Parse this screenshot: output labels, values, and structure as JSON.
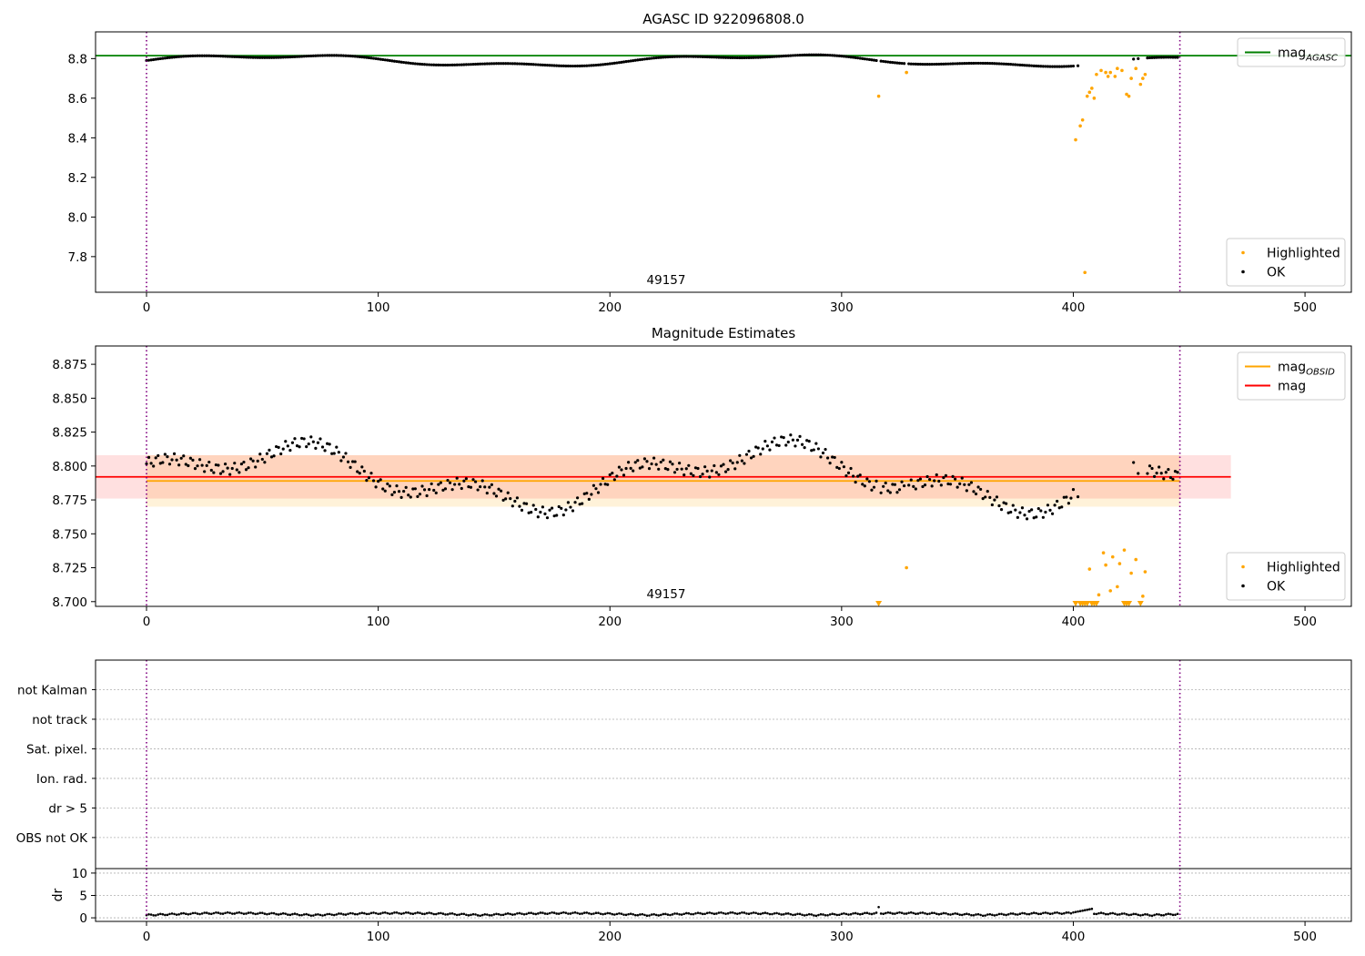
{
  "chart_data": [
    {
      "type": "scatter",
      "title": "AGASC ID 922096808.0",
      "xlim": [
        -22,
        520
      ],
      "ylim": [
        7.62,
        8.935
      ],
      "xticks": [
        0,
        100,
        200,
        300,
        400,
        500
      ],
      "yticks": [
        7.8,
        8.0,
        8.2,
        8.4,
        8.6,
        8.8
      ],
      "ytick_labels": [
        "7.8",
        "8.0",
        "8.2",
        "8.4",
        "8.6",
        "8.8"
      ],
      "annotation": {
        "text": "49157",
        "x": 222,
        "y": 7.7
      },
      "vlines": {
        "x": [
          0,
          446
        ],
        "color": "#800080",
        "style": "dotted"
      },
      "hlines": [
        {
          "y": 8.815,
          "x_range": [
            -22,
            520
          ],
          "color": "#008000",
          "label": "mag",
          "label_sub": "AGASC"
        }
      ],
      "series": [
        {
          "name": "Highlighted",
          "color": "#ffa500",
          "x": [
            316,
            328,
            401,
            403,
            404,
            405,
            406,
            407,
            408,
            409,
            410,
            412,
            414,
            415,
            416,
            418,
            419,
            421,
            423,
            424,
            425,
            427,
            429,
            430,
            431
          ],
          "y": [
            8.61,
            8.73,
            8.39,
            8.46,
            8.49,
            7.72,
            8.61,
            8.63,
            8.65,
            8.6,
            8.72,
            8.74,
            8.73,
            8.71,
            8.73,
            8.71,
            8.75,
            8.74,
            8.62,
            8.61,
            8.7,
            8.75,
            8.67,
            8.7,
            8.72
          ]
        },
        {
          "name": "OK",
          "color": "#000000",
          "gen": "ok_main",
          "y_offset": 0
        }
      ],
      "legends": [
        {
          "pos": "upper-right",
          "entries": [
            {
              "label": "mag",
              "sub": "AGASC",
              "kind": "line",
              "color": "#008000"
            }
          ]
        },
        {
          "pos": "lower-right",
          "entries": [
            {
              "label": "Highlighted",
              "kind": "dot",
              "color": "#ffa500"
            },
            {
              "label": "OK",
              "kind": "dot",
              "color": "#000000"
            }
          ]
        }
      ]
    },
    {
      "type": "scatter",
      "title": "Magnitude Estimates",
      "xlim": [
        -22,
        520
      ],
      "ylim": [
        8.6965,
        8.8885
      ],
      "xticks": [
        0,
        100,
        200,
        300,
        400,
        500
      ],
      "yticks": [
        8.7,
        8.725,
        8.75,
        8.775,
        8.8,
        8.825,
        8.85,
        8.875
      ],
      "ytick_labels": [
        "8.700",
        "8.725",
        "8.750",
        "8.775",
        "8.800",
        "8.825",
        "8.850",
        "8.875"
      ],
      "annotation": {
        "text": "49157",
        "x": 222,
        "y": 8.701
      },
      "vlines": {
        "x": [
          0,
          446
        ],
        "color": "#800080",
        "style": "dotted"
      },
      "bands": [
        {
          "x_range": [
            0,
            446
          ],
          "y_range": [
            8.77,
            8.808
          ],
          "color": "#ffa500",
          "opacity": 0.15
        },
        {
          "x_range": [
            -22,
            468
          ],
          "y_range": [
            8.776,
            8.808
          ],
          "color": "#ff0000",
          "opacity": 0.12
        }
      ],
      "hlines": [
        {
          "y": 8.789,
          "x_range": [
            0,
            446
          ],
          "color": "#ffa500",
          "label": "mag",
          "label_sub": "OBSID"
        },
        {
          "y": 8.792,
          "x_range": [
            -22,
            468
          ],
          "color": "#ff0000",
          "label": "mag"
        }
      ],
      "series": [
        {
          "name": "Highlighted",
          "color": "#ffa500",
          "x": [
            328,
            407,
            411,
            413,
            414,
            416,
            417,
            419,
            420,
            422,
            425,
            427,
            430,
            431
          ],
          "y": [
            8.725,
            8.724,
            8.705,
            8.736,
            8.727,
            8.708,
            8.733,
            8.711,
            8.728,
            8.738,
            8.721,
            8.731,
            8.704,
            8.722
          ]
        },
        {
          "name": "Highlighted (clipped)",
          "color": "#ffa500",
          "marker": "triangle-down",
          "x": [
            316,
            401,
            403,
            404,
            405,
            406,
            408,
            409,
            410,
            422,
            423,
            424,
            429
          ],
          "y": [
            8.6985,
            8.6985,
            8.6985,
            8.6985,
            8.6985,
            8.6985,
            8.6985,
            8.6985,
            8.6985,
            8.6985,
            8.6985,
            8.6985,
            8.6985
          ]
        },
        {
          "name": "OK",
          "color": "#000000",
          "gen": "ok_main",
          "y_offset": 0
        }
      ],
      "legends": [
        {
          "pos": "upper-right",
          "entries": [
            {
              "label": "mag",
              "sub": "OBSID",
              "kind": "line",
              "color": "#ffa500"
            },
            {
              "label": "mag",
              "kind": "line",
              "color": "#ff0000"
            }
          ]
        },
        {
          "pos": "lower-right",
          "entries": [
            {
              "label": "Highlighted",
              "kind": "dot",
              "color": "#ffa500"
            },
            {
              "label": "OK",
              "kind": "dot",
              "color": "#000000"
            }
          ]
        }
      ]
    },
    {
      "type": "table",
      "xlim": [
        -22,
        520
      ],
      "ytick_labels": [
        "not Kalman",
        "not track",
        "Sat. pixel.",
        "Ion. rad.",
        "dr > 5",
        "OBS not OK"
      ],
      "vlines": {
        "x": [
          0,
          446
        ],
        "color": "#800080",
        "style": "dotted"
      },
      "grid": true
    },
    {
      "type": "scatter",
      "xlim": [
        -22,
        520
      ],
      "ylim": [
        -0.8,
        11
      ],
      "ylabel": "dr",
      "xticks": [
        0,
        100,
        200,
        300,
        400,
        500
      ],
      "yticks": [
        0,
        5,
        10
      ],
      "ytick_labels": [
        "0",
        "5",
        "10"
      ],
      "vlines": {
        "x": [
          0,
          446
        ],
        "color": "#800080",
        "style": "dotted"
      },
      "grid": true,
      "series": [
        {
          "name": "dr",
          "color": "#000000",
          "gen": "dr"
        }
      ]
    }
  ]
}
